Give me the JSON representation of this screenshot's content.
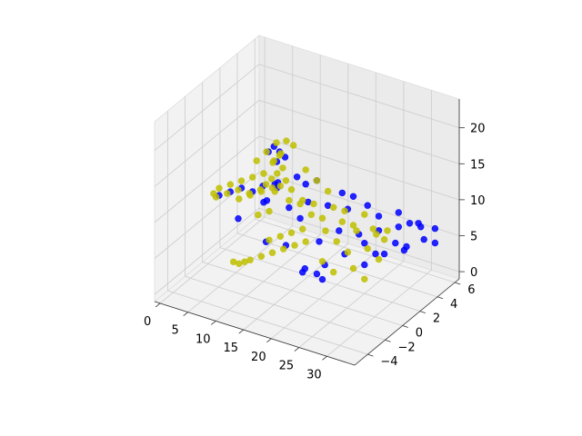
{
  "chart_data": {
    "type": "scatter",
    "projection": "3d",
    "title": "",
    "xlabel": "",
    "ylabel": "",
    "zlabel": "",
    "grid": true,
    "legend": "none",
    "xlim": [
      -1,
      35
    ],
    "ylim": [
      -5.5,
      6.5
    ],
    "zlim": [
      -1,
      24
    ],
    "x_ticks": [
      "0",
      "5",
      "10",
      "15",
      "20",
      "25",
      "30"
    ],
    "y_ticks": [
      "−4",
      "−2",
      "0",
      "2",
      "4",
      "6"
    ],
    "z_ticks": [
      "0",
      "5",
      "10",
      "15",
      "20"
    ],
    "series": [
      {
        "color": "#0000ff",
        "alpha": 0.85,
        "description_points": "dense cloud forming a figure shape",
        "points": [
          [
            14,
            -2,
            20
          ],
          [
            15,
            -2,
            21
          ],
          [
            16,
            -2,
            20.5
          ],
          [
            17,
            -2,
            20
          ],
          [
            15.5,
            -2,
            19
          ],
          [
            13,
            -2,
            15
          ],
          [
            14,
            -1,
            14
          ],
          [
            12,
            0,
            13
          ],
          [
            16,
            1,
            13
          ],
          [
            18,
            0,
            12
          ],
          [
            20,
            1,
            11
          ],
          [
            22,
            2,
            10
          ],
          [
            24,
            3,
            10
          ],
          [
            26,
            3,
            9
          ],
          [
            28,
            4,
            9
          ],
          [
            30,
            4,
            8
          ],
          [
            32,
            4,
            8
          ],
          [
            31,
            3,
            6
          ],
          [
            29,
            3,
            6
          ],
          [
            27,
            2,
            5
          ],
          [
            25,
            2,
            6
          ],
          [
            23,
            1,
            5
          ],
          [
            21,
            0,
            4
          ],
          [
            19,
            -1,
            4
          ],
          [
            20,
            0,
            7
          ],
          [
            22,
            1,
            8
          ],
          [
            24,
            2,
            7
          ],
          [
            26,
            3,
            7
          ],
          [
            28,
            4,
            7
          ],
          [
            30,
            5,
            7
          ],
          [
            33,
            5,
            7
          ],
          [
            33,
            5,
            5
          ],
          [
            31,
            5,
            5
          ],
          [
            29,
            4,
            4
          ],
          [
            27,
            3,
            4
          ],
          [
            25,
            2,
            3
          ],
          [
            17,
            0,
            2
          ],
          [
            18,
            1,
            1
          ],
          [
            19,
            1,
            0.5
          ],
          [
            10,
            0,
            10
          ],
          [
            8,
            0,
            11
          ],
          [
            6,
            0,
            11
          ],
          [
            4,
            0,
            10
          ],
          [
            2,
            0,
            9
          ],
          [
            11,
            1,
            12
          ],
          [
            9,
            1,
            9
          ],
          [
            7,
            -1,
            8
          ],
          [
            13,
            1,
            9
          ],
          [
            15,
            1,
            8
          ],
          [
            21,
            2,
            12
          ],
          [
            23,
            2,
            12
          ],
          [
            18,
            1,
            14
          ],
          [
            16,
            0,
            15
          ],
          [
            12,
            -1,
            6
          ],
          [
            14,
            0,
            5
          ]
        ]
      },
      {
        "color": "#bfbf00",
        "alpha": 0.85,
        "points": [
          [
            15,
            -4,
            21
          ],
          [
            16,
            -3.5,
            22
          ],
          [
            17,
            -3,
            23
          ],
          [
            18,
            -2.5,
            23
          ],
          [
            18.5,
            -2,
            22
          ],
          [
            17,
            -2.5,
            21
          ],
          [
            16,
            -2,
            20
          ],
          [
            15,
            -2,
            19
          ],
          [
            14,
            -1.5,
            18
          ],
          [
            15,
            -1,
            17
          ],
          [
            14,
            -1,
            16
          ],
          [
            13,
            -1,
            15
          ],
          [
            12,
            -1,
            14
          ],
          [
            10,
            0,
            14
          ],
          [
            8,
            0,
            13
          ],
          [
            6,
            0,
            12
          ],
          [
            4,
            0,
            11
          ],
          [
            2,
            0,
            10
          ],
          [
            1,
            0,
            9
          ],
          [
            3,
            -1,
            10
          ],
          [
            5,
            -1,
            11
          ],
          [
            7,
            -1,
            12
          ],
          [
            9,
            -1,
            12
          ],
          [
            11,
            -1,
            13
          ],
          [
            13,
            0,
            13
          ],
          [
            15,
            0,
            13
          ],
          [
            17,
            0,
            12
          ],
          [
            19,
            0,
            12
          ],
          [
            21,
            1,
            11
          ],
          [
            23,
            1,
            11
          ],
          [
            25,
            2,
            10
          ],
          [
            20,
            1,
            13
          ],
          [
            18,
            1,
            14
          ],
          [
            16,
            1,
            15
          ],
          [
            14,
            0,
            14
          ],
          [
            12,
            0,
            12
          ],
          [
            10,
            1,
            11
          ],
          [
            8,
            1,
            10
          ],
          [
            6,
            1,
            9
          ],
          [
            4,
            1,
            8
          ],
          [
            9,
            0,
            8
          ],
          [
            11,
            0,
            9
          ],
          [
            13,
            1,
            10
          ],
          [
            15,
            1,
            10
          ],
          [
            17,
            1,
            9
          ],
          [
            19,
            1,
            9
          ],
          [
            21,
            2,
            8
          ],
          [
            23,
            2,
            8
          ],
          [
            25,
            3,
            7
          ],
          [
            27,
            3,
            6
          ],
          [
            18,
            2,
            6
          ],
          [
            20,
            2,
            5
          ],
          [
            22,
            2,
            4
          ],
          [
            24,
            3,
            4
          ],
          [
            26,
            3,
            3
          ],
          [
            16,
            1,
            5
          ],
          [
            14,
            1,
            4
          ],
          [
            12,
            1,
            3
          ],
          [
            10,
            1,
            2
          ],
          [
            8,
            1,
            1
          ],
          [
            6,
            1,
            0
          ],
          [
            5,
            1,
            -0.5
          ],
          [
            4,
            1,
            -1
          ],
          [
            3,
            1,
            -1
          ],
          [
            19,
            1,
            3
          ],
          [
            21,
            1,
            2
          ],
          [
            23,
            2,
            2
          ],
          [
            25,
            2,
            1
          ],
          [
            15,
            0,
            7
          ],
          [
            13,
            0,
            6
          ],
          [
            11,
            0,
            5
          ],
          [
            17,
            0,
            8
          ],
          [
            22,
            3,
            6
          ],
          [
            24,
            4,
            5
          ],
          [
            26,
            4,
            6
          ]
        ]
      }
    ]
  }
}
